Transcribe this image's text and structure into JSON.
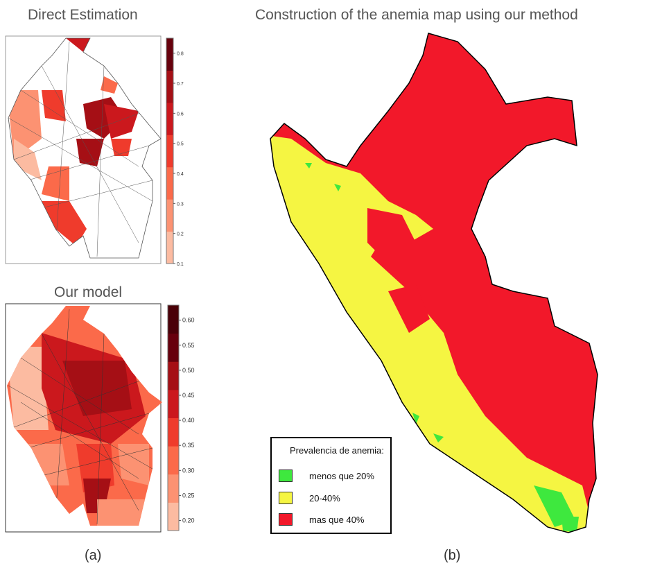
{
  "panel_a": {
    "top_title": "Direct Estimation",
    "bottom_title": "Our model",
    "caption": "(a)",
    "top_colorbar": {
      "ticks": [
        "0.1",
        "0.2",
        "0.3",
        "0.4",
        "0.5",
        "0.6",
        "0.7",
        "0.8"
      ],
      "range": [
        0.1,
        0.85
      ]
    },
    "bottom_colorbar": {
      "ticks": [
        "0.20",
        "0.25",
        "0.30",
        "0.35",
        "0.40",
        "0.45",
        "0.50",
        "0.55",
        "0.60"
      ],
      "range": [
        0.18,
        0.63
      ]
    },
    "palette": [
      "#fcbba1",
      "#fc9272",
      "#fb6a4a",
      "#ef3b2c",
      "#cb181d",
      "#a50f15",
      "#67000d",
      "#4a0008"
    ]
  },
  "panel_b": {
    "title": "Construction of the anemia map using our method",
    "caption": "(b)",
    "legend": {
      "title": "Prevalencia de anemia:",
      "items": [
        {
          "label": "menos que 20%",
          "color": "#3ee83e"
        },
        {
          "label": "20-40%",
          "color": "#f5f542"
        },
        {
          "label": "mas que 40%",
          "color": "#f2182a"
        }
      ]
    }
  }
}
